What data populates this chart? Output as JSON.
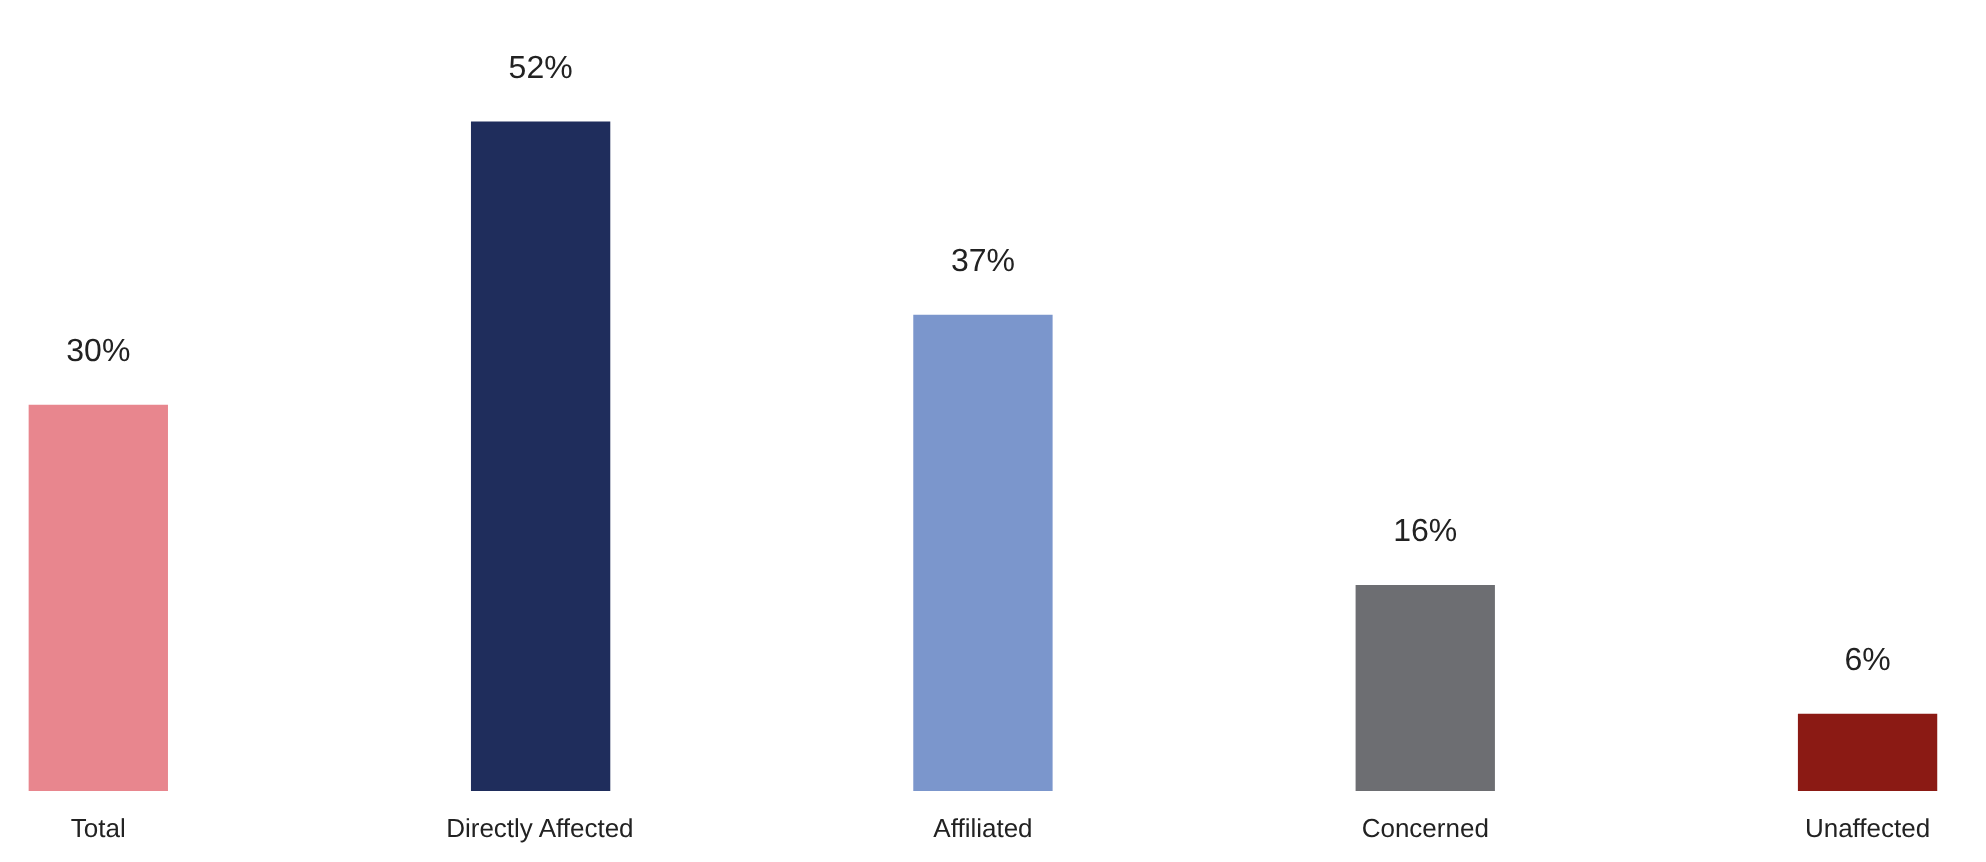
{
  "chart_data": {
    "type": "bar",
    "categories": [
      "Total",
      "Directly Affected",
      "Affiliated",
      "Concerned",
      "Unaffected"
    ],
    "values": [
      30,
      52,
      37,
      16,
      6
    ],
    "colors": [
      "#e8868e",
      "#1f2d5c",
      "#7b96cc",
      "#6d6e72",
      "#8b1a14"
    ],
    "value_labels": [
      "30%",
      "52%",
      "37%",
      "16%",
      "6%"
    ]
  }
}
